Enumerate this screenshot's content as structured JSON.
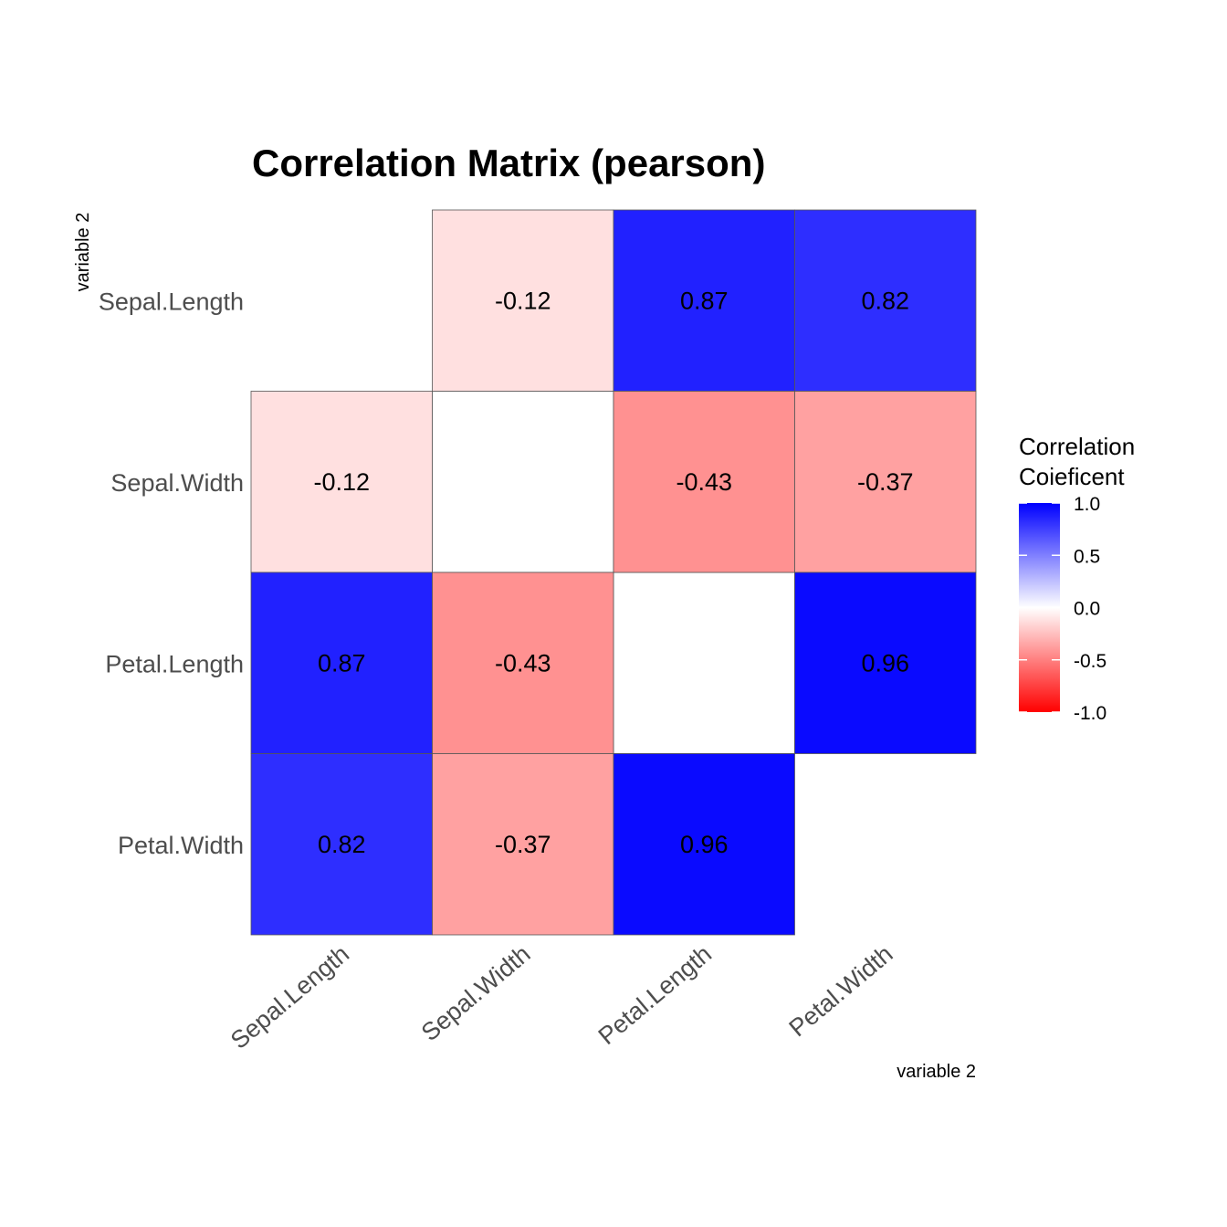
{
  "chart_data": {
    "type": "heatmap",
    "title": "Correlation Matrix (pearson)",
    "xlabel": "variable 2",
    "ylabel": "variable 2",
    "variables": [
      "Sepal.Length",
      "Sepal.Width",
      "Petal.Length",
      "Petal.Width"
    ],
    "matrix": [
      [
        null,
        -0.12,
        0.87,
        0.82
      ],
      [
        -0.12,
        null,
        -0.43,
        -0.37
      ],
      [
        0.87,
        -0.43,
        null,
        0.96
      ],
      [
        0.82,
        -0.37,
        0.96,
        null
      ]
    ],
    "legend": {
      "title_lines": [
        "Correlation",
        "Coieficent"
      ],
      "ticks": [
        "1.0",
        "0.5",
        "0.0",
        "-0.5",
        "-1.0"
      ],
      "range": [
        -1,
        1
      ],
      "position": "right"
    },
    "colors": {
      "low": "#ff0000",
      "mid": "#ffffff",
      "high": "#0000ff"
    }
  }
}
